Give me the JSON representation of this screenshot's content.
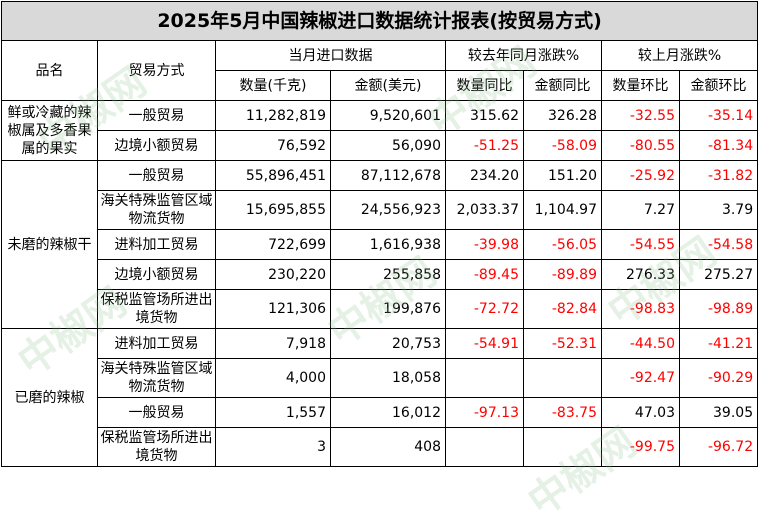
{
  "title": "2025年5月中国辣椒进口数据统计报表(按贸易方式)",
  "headers": {
    "product": "品名",
    "trade_mode": "贸易方式",
    "current_month": "当月进口数据",
    "yoy": "较去年同月涨跌%",
    "mom": "较上月涨跌%",
    "qty": "数量(千克)",
    "amt": "金额(美元)",
    "qty_yoy": "数量同比",
    "amt_yoy": "金额同比",
    "qty_mom": "数量环比",
    "amt_mom": "金额环比"
  },
  "watermark": "中椒网",
  "groups": [
    {
      "product": "鲜或冷藏的辣椒属及多香果属的果实",
      "rows": [
        {
          "mode": "一般贸易",
          "qty": "11,282,819",
          "amt": "9,520,601",
          "qty_yoy": "315.62",
          "amt_yoy": "326.28",
          "qty_mom": "-32.55",
          "amt_mom": "-35.14"
        },
        {
          "mode": "边境小额贸易",
          "qty": "76,592",
          "amt": "56,090",
          "qty_yoy": "-51.25",
          "amt_yoy": "-58.09",
          "qty_mom": "-80.55",
          "amt_mom": "-81.34"
        }
      ]
    },
    {
      "product": "未磨的辣椒干",
      "rows": [
        {
          "mode": "一般贸易",
          "qty": "55,896,451",
          "amt": "87,112,678",
          "qty_yoy": "234.20",
          "amt_yoy": "151.20",
          "qty_mom": "-25.92",
          "amt_mom": "-31.82"
        },
        {
          "mode": "海关特殊监管区域物流货物",
          "qty": "15,695,855",
          "amt": "24,556,923",
          "qty_yoy": "2,033.37",
          "amt_yoy": "1,104.97",
          "qty_mom": "7.27",
          "amt_mom": "3.79"
        },
        {
          "mode": "进料加工贸易",
          "qty": "722,699",
          "amt": "1,616,938",
          "qty_yoy": "-39.98",
          "amt_yoy": "-56.05",
          "qty_mom": "-54.55",
          "amt_mom": "-54.58"
        },
        {
          "mode": "边境小额贸易",
          "qty": "230,220",
          "amt": "255,858",
          "qty_yoy": "-89.45",
          "amt_yoy": "-89.89",
          "qty_mom": "276.33",
          "amt_mom": "275.27"
        },
        {
          "mode": "保税监管场所进出境货物",
          "qty": "121,306",
          "amt": "199,876",
          "qty_yoy": "-72.72",
          "amt_yoy": "-82.84",
          "qty_mom": "-98.83",
          "amt_mom": "-98.89"
        }
      ]
    },
    {
      "product": "已磨的辣椒",
      "rows": [
        {
          "mode": "进料加工贸易",
          "qty": "7,918",
          "amt": "20,753",
          "qty_yoy": "-54.91",
          "amt_yoy": "-52.31",
          "qty_mom": "-44.50",
          "amt_mom": "-41.21"
        },
        {
          "mode": "海关特殊监管区域物流货物",
          "qty": "4,000",
          "amt": "18,058",
          "qty_yoy": "",
          "amt_yoy": "",
          "qty_mom": "-92.47",
          "amt_mom": "-90.29"
        },
        {
          "mode": "一般贸易",
          "qty": "1,557",
          "amt": "16,012",
          "qty_yoy": "-97.13",
          "amt_yoy": "-83.75",
          "qty_mom": "47.03",
          "amt_mom": "39.05"
        },
        {
          "mode": "保税监管场所进出境货物",
          "qty": "3",
          "amt": "408",
          "qty_yoy": "",
          "amt_yoy": "",
          "qty_mom": "-99.75",
          "amt_mom": "-96.72"
        }
      ]
    }
  ]
}
